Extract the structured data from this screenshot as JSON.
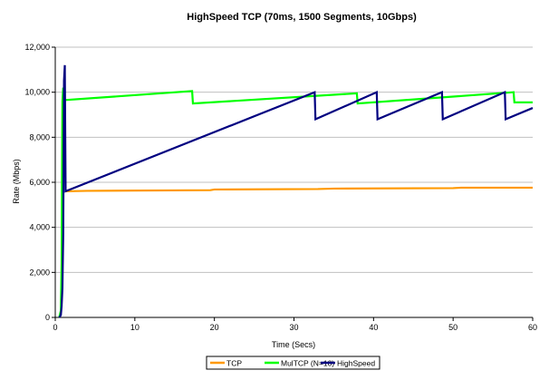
{
  "chart_data": {
    "type": "line",
    "title": "HighSpeed TCP (70ms, 1500 Segments, 10Gbps)",
    "xlabel": "Time (Secs)",
    "ylabel": "Rate (Mbps)",
    "xlim": [
      0,
      60
    ],
    "ylim": [
      0,
      12000
    ],
    "xticks": [
      0,
      10,
      20,
      30,
      40,
      50,
      60
    ],
    "yticks": [
      0,
      2000,
      4000,
      6000,
      8000,
      10000,
      12000
    ],
    "xtick_labels": [
      "0",
      "10",
      "20",
      "30",
      "40",
      "50",
      "60"
    ],
    "ytick_labels": [
      "0",
      "2,000",
      "4,000",
      "6,000",
      "8,000",
      "10,000",
      "12,000"
    ],
    "grid": "horizontal",
    "legend_position": "bottom",
    "series": [
      {
        "name": "TCP",
        "color": "#FF9900",
        "points": [
          [
            1.3,
            5600
          ],
          [
            4,
            5620
          ],
          [
            19.5,
            5650
          ],
          [
            20,
            5680
          ],
          [
            33,
            5700
          ],
          [
            35,
            5720
          ],
          [
            50,
            5740
          ],
          [
            51,
            5760
          ],
          [
            60,
            5760
          ]
        ]
      },
      {
        "name": "MulTCP (N=10)",
        "color": "#00FF00",
        "points": [
          [
            0.5,
            0
          ],
          [
            0.7,
            300
          ],
          [
            0.8,
            2400
          ],
          [
            0.9,
            9600
          ],
          [
            1.0,
            10200
          ],
          [
            1.2,
            9650
          ],
          [
            17.2,
            10050
          ],
          [
            17.3,
            9500
          ],
          [
            37.9,
            9950
          ],
          [
            38.0,
            9500
          ],
          [
            57.6,
            10000
          ],
          [
            57.7,
            9550
          ],
          [
            60,
            9550
          ]
        ]
      },
      {
        "name": "HighSpeed",
        "color": "#000080",
        "points": [
          [
            0.5,
            0
          ],
          [
            0.7,
            100
          ],
          [
            0.8,
            500
          ],
          [
            0.9,
            1300
          ],
          [
            1.0,
            3700
          ],
          [
            1.1,
            10500
          ],
          [
            1.2,
            11200
          ],
          [
            1.3,
            5600
          ],
          [
            32.6,
            10000
          ],
          [
            32.7,
            8800
          ],
          [
            40.4,
            10000
          ],
          [
            40.5,
            8800
          ],
          [
            48.6,
            10000
          ],
          [
            48.7,
            8800
          ],
          [
            56.5,
            10000
          ],
          [
            56.6,
            8800
          ],
          [
            60,
            9300
          ]
        ]
      }
    ]
  }
}
